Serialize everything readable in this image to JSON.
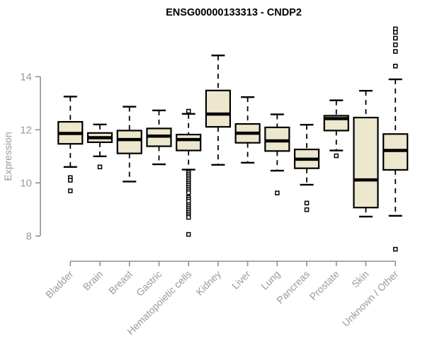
{
  "chart_data": {
    "type": "boxplot",
    "title": "ENSG00000133313 - CNDP2",
    "ylabel": "Expression",
    "xlabel": "",
    "yticks": [
      8,
      10,
      12,
      14
    ],
    "ylim": [
      7.4,
      15.9
    ],
    "grid": false,
    "legend": null,
    "categories": [
      "Bladder",
      "Brain",
      "Breast",
      "Gastric",
      "Hematopoietic cells",
      "Kidney",
      "Liver",
      "Lung",
      "Pancreas",
      "Prostate",
      "Skin",
      "Unknown / Other"
    ],
    "series": [
      {
        "name": "Bladder",
        "whisker_low": 10.6,
        "q1": 11.47,
        "median": 11.86,
        "q3": 12.3,
        "whisker_high": 13.25,
        "outliers": [
          10.2,
          10.1,
          9.7
        ]
      },
      {
        "name": "Brain",
        "whisker_low": 11.0,
        "q1": 11.53,
        "median": 11.7,
        "q3": 11.88,
        "whisker_high": 12.2,
        "outliers": [
          10.6
        ]
      },
      {
        "name": "Breast",
        "whisker_low": 10.05,
        "q1": 11.11,
        "median": 11.63,
        "q3": 11.97,
        "whisker_high": 12.87,
        "outliers": []
      },
      {
        "name": "Gastric",
        "whisker_low": 10.7,
        "q1": 11.38,
        "median": 11.76,
        "q3": 12.05,
        "whisker_high": 12.73,
        "outliers": []
      },
      {
        "name": "Hematopoietic cells",
        "whisker_low": 10.5,
        "q1": 11.22,
        "median": 11.63,
        "q3": 11.82,
        "whisker_high": 12.6,
        "outliers": [
          12.7,
          10.4,
          10.33,
          10.26,
          10.19,
          10.12,
          10.05,
          9.98,
          9.91,
          9.84,
          9.77,
          9.7,
          9.63,
          9.45,
          9.38,
          9.31,
          9.18,
          9.11,
          9.04,
          8.97,
          8.9,
          8.83,
          8.76,
          8.7,
          8.06
        ]
      },
      {
        "name": "Kidney",
        "whisker_low": 10.68,
        "q1": 12.11,
        "median": 12.59,
        "q3": 13.48,
        "whisker_high": 14.8,
        "outliers": []
      },
      {
        "name": "Liver",
        "whisker_low": 10.76,
        "q1": 11.51,
        "median": 11.87,
        "q3": 12.22,
        "whisker_high": 13.23,
        "outliers": []
      },
      {
        "name": "Lung",
        "whisker_low": 10.46,
        "q1": 11.2,
        "median": 11.58,
        "q3": 12.09,
        "whisker_high": 12.58,
        "outliers": [
          9.62
        ]
      },
      {
        "name": "Pancreas",
        "whisker_low": 9.93,
        "q1": 10.55,
        "median": 10.89,
        "q3": 11.26,
        "whisker_high": 12.19,
        "outliers": [
          9.24,
          8.99
        ]
      },
      {
        "name": "Prostate",
        "whisker_low": 11.22,
        "q1": 11.97,
        "median": 12.42,
        "q3": 12.53,
        "whisker_high": 13.11,
        "outliers": [
          11.02
        ]
      },
      {
        "name": "Skin",
        "whisker_low": 8.73,
        "q1": 9.07,
        "median": 10.11,
        "q3": 12.46,
        "whisker_high": 13.47,
        "outliers": []
      },
      {
        "name": "Unknown / Other",
        "whisker_low": 8.76,
        "q1": 10.49,
        "median": 11.22,
        "q3": 11.84,
        "whisker_high": 13.9,
        "outliers": [
          15.8,
          15.67,
          15.45,
          15.2,
          14.95,
          14.4,
          7.5
        ]
      }
    ],
    "colors": {
      "box_fill": "#ECE7CD",
      "box_stroke": "#000000",
      "median": "#000000",
      "whisker": "#000000",
      "axis": "#8f8f8f",
      "tick_label": "#9a9a9a",
      "title": "#000000"
    }
  }
}
